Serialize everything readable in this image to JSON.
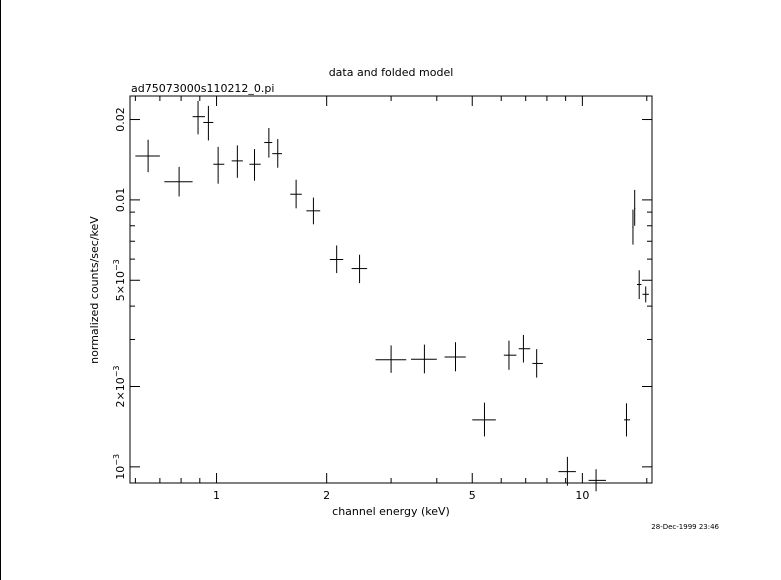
{
  "chart_data": {
    "type": "scatter",
    "title": "data and folded model",
    "subtitle": "ad75073000s110212_0.pi",
    "xlabel": "channel energy (keV)",
    "ylabel": "normalized counts/sec/keV",
    "timestamp": "28-Dec-1999 23:46",
    "x_scale": "log",
    "y_scale": "log",
    "xlim": [
      0.58,
      15.5
    ],
    "ylim": [
      0.00087,
      0.0245
    ],
    "x_tick_labels": [
      {
        "value": 1,
        "label": "1"
      },
      {
        "value": 2,
        "label": "2"
      },
      {
        "value": 5,
        "label": "5"
      },
      {
        "value": 10,
        "label": "10"
      }
    ],
    "y_tick_labels": [
      {
        "value": 0.001,
        "label": "10",
        "exp": "−3"
      },
      {
        "value": 0.002,
        "label": "2×10",
        "exp": "−3"
      },
      {
        "value": 0.005,
        "label": "5×10",
        "exp": "−3"
      },
      {
        "value": 0.01,
        "label": "0.01",
        "exp": ""
      },
      {
        "value": 0.02,
        "label": "0.02",
        "exp": ""
      }
    ],
    "series": [
      {
        "points": [
          {
            "x": 0.65,
            "xlo": 0.6,
            "xhi": 0.7,
            "y": 0.0146,
            "ylo": 0.0127,
            "yhi": 0.0168
          },
          {
            "x": 0.79,
            "xlo": 0.72,
            "xhi": 0.86,
            "y": 0.0117,
            "ylo": 0.0103,
            "yhi": 0.0133
          },
          {
            "x": 0.89,
            "xlo": 0.86,
            "xhi": 0.93,
            "y": 0.0205,
            "ylo": 0.0176,
            "yhi": 0.0235
          },
          {
            "x": 0.95,
            "xlo": 0.92,
            "xhi": 0.98,
            "y": 0.0195,
            "ylo": 0.0167,
            "yhi": 0.0225
          },
          {
            "x": 1.01,
            "xlo": 0.98,
            "xhi": 1.05,
            "y": 0.0136,
            "ylo": 0.0115,
            "yhi": 0.0158
          },
          {
            "x": 1.14,
            "xlo": 1.1,
            "xhi": 1.18,
            "y": 0.014,
            "ylo": 0.0121,
            "yhi": 0.016
          },
          {
            "x": 1.27,
            "xlo": 1.23,
            "xhi": 1.32,
            "y": 0.0136,
            "ylo": 0.0118,
            "yhi": 0.0155
          },
          {
            "x": 1.39,
            "xlo": 1.35,
            "xhi": 1.42,
            "y": 0.0164,
            "ylo": 0.0144,
            "yhi": 0.0186
          },
          {
            "x": 1.47,
            "xlo": 1.42,
            "xhi": 1.51,
            "y": 0.0149,
            "ylo": 0.0132,
            "yhi": 0.0169
          },
          {
            "x": 1.65,
            "xlo": 1.59,
            "xhi": 1.71,
            "y": 0.0105,
            "ylo": 0.0093,
            "yhi": 0.0119
          },
          {
            "x": 1.84,
            "xlo": 1.76,
            "xhi": 1.92,
            "y": 0.0091,
            "ylo": 0.0081,
            "yhi": 0.0102
          },
          {
            "x": 2.13,
            "xlo": 2.04,
            "xhi": 2.22,
            "y": 0.00598,
            "ylo": 0.00532,
            "yhi": 0.00675
          },
          {
            "x": 2.46,
            "xlo": 2.34,
            "xhi": 2.58,
            "y": 0.00553,
            "ylo": 0.00488,
            "yhi": 0.00623
          },
          {
            "x": 3.0,
            "xlo": 2.72,
            "xhi": 3.3,
            "y": 0.00252,
            "ylo": 0.00225,
            "yhi": 0.00285
          },
          {
            "x": 3.7,
            "xlo": 3.4,
            "xhi": 4.0,
            "y": 0.00253,
            "ylo": 0.00224,
            "yhi": 0.00287
          },
          {
            "x": 4.5,
            "xlo": 4.2,
            "xhi": 4.8,
            "y": 0.00258,
            "ylo": 0.00228,
            "yhi": 0.00293
          },
          {
            "x": 5.4,
            "xlo": 5.0,
            "xhi": 5.8,
            "y": 0.0015,
            "ylo": 0.0013,
            "yhi": 0.00174
          },
          {
            "x": 6.3,
            "xlo": 6.1,
            "xhi": 6.6,
            "y": 0.00262,
            "ylo": 0.00231,
            "yhi": 0.00297
          },
          {
            "x": 6.9,
            "xlo": 6.7,
            "xhi": 7.2,
            "y": 0.00277,
            "ylo": 0.00246,
            "yhi": 0.00312
          },
          {
            "x": 7.5,
            "xlo": 7.3,
            "xhi": 7.8,
            "y": 0.00244,
            "ylo": 0.00216,
            "yhi": 0.00276
          },
          {
            "x": 9.1,
            "xlo": 8.6,
            "xhi": 9.6,
            "y": 0.00096,
            "ylo": 0.00085,
            "yhi": 0.00109
          },
          {
            "x": 10.9,
            "xlo": 10.4,
            "xhi": 11.6,
            "y": 0.00089,
            "ylo": 0.00081,
            "yhi": 0.00098
          },
          {
            "x": 13.2,
            "xlo": 13.0,
            "xhi": 13.5,
            "y": 0.0015,
            "ylo": 0.0013,
            "yhi": 0.00173
          },
          {
            "x": 13.75,
            "xlo": 13.7,
            "xhi": 13.8,
            "y": 0.0079,
            "ylo": 0.0068,
            "yhi": 0.0092
          },
          {
            "x": 13.9,
            "xlo": 13.85,
            "xhi": 13.95,
            "y": 0.0093,
            "ylo": 0.008,
            "yhi": 0.0109
          },
          {
            "x": 14.3,
            "xlo": 14.1,
            "xhi": 14.5,
            "y": 0.00482,
            "ylo": 0.00425,
            "yhi": 0.00545
          },
          {
            "x": 14.9,
            "xlo": 14.6,
            "xhi": 15.2,
            "y": 0.00443,
            "ylo": 0.00413,
            "yhi": 0.00474
          }
        ]
      }
    ]
  }
}
